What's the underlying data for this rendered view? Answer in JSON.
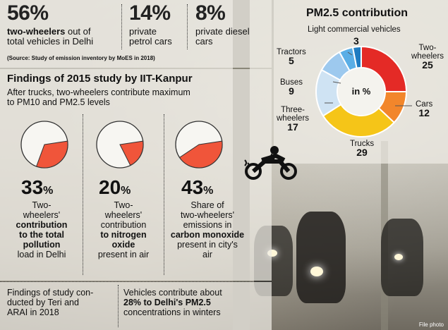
{
  "top_stats": [
    {
      "value": "56%",
      "desc_bold": "two-wheelers",
      "desc_rest": " out of",
      "desc_line2": "total vehicles in Delhi"
    },
    {
      "value": "14%",
      "desc_line1": "private",
      "desc_line2": "petrol cars"
    },
    {
      "value": "8%",
      "desc_line1": "private diesel",
      "desc_line2": "cars"
    }
  ],
  "source_note": "(Source: Study of emission inventory by MoES in 2018)",
  "study": {
    "title": "Findings of 2015 study by IIT-Kanpur",
    "subtitle_line1": "After trucks, two-wheelers contribute maximum",
    "subtitle_line2": "to PM10 and PM2.5 levels",
    "items": [
      {
        "number": "33",
        "unit": "%",
        "value": 33,
        "lines": [
          "Two-",
          "wheelers'"
        ],
        "bold_lines": [
          "contribution",
          "to the total",
          "pollution"
        ],
        "rest_lines": [
          "load in Delhi"
        ]
      },
      {
        "number": "20",
        "unit": "%",
        "value": 20,
        "lines": [
          "Two-",
          "wheelers'",
          "contribution"
        ],
        "bold_lines": [
          "to nitrogen",
          "oxide"
        ],
        "rest_lines": [
          "present in air"
        ]
      },
      {
        "number": "43",
        "unit": "%",
        "value": 43,
        "lines": [
          "Share of",
          "two-wheelers'",
          "emissions in"
        ],
        "bold_lines": [
          "carbon monoxide"
        ],
        "rest_lines": [
          "present in city's",
          "air"
        ]
      }
    ]
  },
  "bottom": {
    "left_line1": "Findings of study con-",
    "left_line2": "ducted by Teri and",
    "left_line3": "ARAI in 2018",
    "right_line1": "Vehicles contribute about",
    "right_bold": "28% to Delhi's PM2.5",
    "right_line3": "concentrations in winters"
  },
  "chart_data": {
    "type": "pie",
    "title": "PM2.5 contribution",
    "center_label": "in %",
    "slices": [
      {
        "label": "Two-wheelers",
        "value": 25,
        "color": "#e42a26"
      },
      {
        "label": "Cars",
        "value": 12,
        "color": "#f2862b"
      },
      {
        "label": "Trucks",
        "value": 29,
        "color": "#f5c518"
      },
      {
        "label": "Three-wheelers",
        "value": 17,
        "color": "#cfe3f3"
      },
      {
        "label": "Buses",
        "value": 9,
        "color": "#9dc9ee"
      },
      {
        "label": "Tractors",
        "value": 5,
        "color": "#5aaee6"
      },
      {
        "label": "Light commercial vehicles",
        "value": 3,
        "color": "#1f7cc1"
      }
    ]
  },
  "labels": {
    "lcv": "Light commercial vehicles",
    "tractors": "Tractors",
    "tractors_v": "5",
    "buses": "Buses",
    "buses_v": "9",
    "three_a": "Three-",
    "three_b": "wheelers",
    "three_v": "17",
    "trucks": "Trucks",
    "trucks_v": "29",
    "cars": "Cars",
    "cars_v": "12",
    "two_a": "Two-",
    "two_b": "wheelers",
    "two_v": "25",
    "lcv_v": "3"
  },
  "photo_credit": "File photo"
}
